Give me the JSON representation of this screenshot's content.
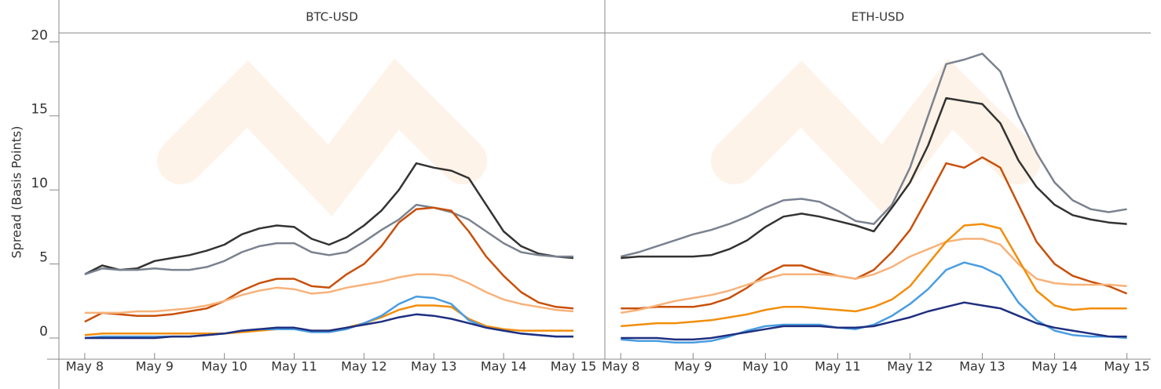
{
  "chart_data": [
    {
      "type": "line",
      "title": "BTC-USD",
      "ylabel": "Spread (Basis Points)",
      "x": [
        8,
        8.25,
        8.5,
        8.75,
        9,
        9.25,
        9.5,
        9.75,
        10,
        10.25,
        10.5,
        10.75,
        11,
        11.25,
        11.5,
        11.75,
        12,
        12.25,
        12.5,
        12.75,
        13,
        13.25,
        13.5,
        13.75,
        14,
        14.25,
        14.5,
        14.75,
        15
      ],
      "xlim": [
        7.63,
        15.45
      ],
      "xticks": [
        {
          "value": 8,
          "label": "May 8"
        },
        {
          "value": 9,
          "label": "May 9"
        },
        {
          "value": 10,
          "label": "May 10"
        },
        {
          "value": 11,
          "label": "May 11"
        },
        {
          "value": 12,
          "label": "May 12"
        },
        {
          "value": 13,
          "label": "May 13"
        },
        {
          "value": 14,
          "label": "May 14"
        },
        {
          "value": 15,
          "label": "May 15"
        }
      ],
      "ylim": [
        -0.9,
        20.6
      ],
      "yticks": [
        0,
        5,
        10,
        15,
        20
      ],
      "series": [
        {
          "color": "#333333",
          "values": [
            4.3,
            4.9,
            4.6,
            4.7,
            5.2,
            5.4,
            5.6,
            5.9,
            6.3,
            7.0,
            7.4,
            7.6,
            7.5,
            6.7,
            6.3,
            6.8,
            7.6,
            8.6,
            10.0,
            11.8,
            11.5,
            11.3,
            10.8,
            9.0,
            7.2,
            6.2,
            5.7,
            5.5,
            5.4
          ]
        },
        {
          "color": "#7a8290",
          "values": [
            4.3,
            4.7,
            4.6,
            4.6,
            4.7,
            4.6,
            4.6,
            4.8,
            5.2,
            5.8,
            6.2,
            6.4,
            6.4,
            5.8,
            5.6,
            5.8,
            6.5,
            7.3,
            8.0,
            9.0,
            8.8,
            8.5,
            8.0,
            7.2,
            6.4,
            5.8,
            5.6,
            5.5,
            5.5
          ]
        },
        {
          "color": "#c8500a",
          "values": [
            1.1,
            1.7,
            1.6,
            1.5,
            1.5,
            1.6,
            1.8,
            2.0,
            2.5,
            3.2,
            3.7,
            4.0,
            4.0,
            3.5,
            3.4,
            4.3,
            5.0,
            6.2,
            7.8,
            8.7,
            8.8,
            8.6,
            7.2,
            5.5,
            4.2,
            3.1,
            2.4,
            2.1,
            2.0
          ]
        },
        {
          "color": "#f7b27a",
          "values": [
            1.7,
            1.7,
            1.7,
            1.8,
            1.8,
            1.9,
            2.0,
            2.2,
            2.5,
            2.9,
            3.2,
            3.4,
            3.3,
            3.0,
            3.1,
            3.4,
            3.6,
            3.8,
            4.1,
            4.3,
            4.3,
            4.2,
            3.7,
            3.1,
            2.6,
            2.3,
            2.1,
            1.9,
            1.8
          ]
        },
        {
          "color": "#f28e0b",
          "values": [
            0.2,
            0.3,
            0.3,
            0.3,
            0.3,
            0.3,
            0.3,
            0.3,
            0.3,
            0.4,
            0.5,
            0.6,
            0.6,
            0.5,
            0.5,
            0.7,
            1.0,
            1.4,
            1.9,
            2.2,
            2.2,
            2.1,
            1.3,
            0.8,
            0.6,
            0.5,
            0.5,
            0.5,
            0.5
          ]
        },
        {
          "color": "#4a9de0",
          "values": [
            0.0,
            0.1,
            0.1,
            0.1,
            0.1,
            0.1,
            0.1,
            0.2,
            0.3,
            0.5,
            0.6,
            0.6,
            0.6,
            0.4,
            0.4,
            0.6,
            1.0,
            1.5,
            2.3,
            2.8,
            2.7,
            2.3,
            1.2,
            0.7,
            0.5,
            0.3,
            0.2,
            0.1,
            0.1
          ]
        },
        {
          "color": "#1f2f80",
          "values": [
            0.0,
            0.0,
            0.0,
            0.0,
            0.0,
            0.1,
            0.1,
            0.2,
            0.3,
            0.5,
            0.6,
            0.7,
            0.7,
            0.5,
            0.5,
            0.7,
            0.9,
            1.1,
            1.4,
            1.6,
            1.5,
            1.3,
            1.0,
            0.7,
            0.5,
            0.3,
            0.2,
            0.1,
            0.1
          ]
        }
      ]
    },
    {
      "type": "line",
      "title": "ETH-USD",
      "x": [
        8,
        8.25,
        8.5,
        8.75,
        9,
        9.25,
        9.5,
        9.75,
        10,
        10.25,
        10.5,
        10.75,
        11,
        11.25,
        11.5,
        11.75,
        12,
        12.25,
        12.5,
        12.75,
        13,
        13.25,
        13.5,
        13.75,
        14,
        14.25,
        14.5,
        14.75,
        15
      ],
      "xlim": [
        7.78,
        15.33
      ],
      "xticks": [
        {
          "value": 8,
          "label": "May 8"
        },
        {
          "value": 9,
          "label": "May 9"
        },
        {
          "value": 10,
          "label": "May 10"
        },
        {
          "value": 11,
          "label": "May 11"
        },
        {
          "value": 12,
          "label": "May 12"
        },
        {
          "value": 13,
          "label": "May 13"
        },
        {
          "value": 14,
          "label": "May 14"
        },
        {
          "value": 15,
          "label": "May 15"
        }
      ],
      "ylim": [
        -0.9,
        20.6
      ],
      "series": [
        {
          "color": "#7a8290",
          "values": [
            5.5,
            5.8,
            6.2,
            6.6,
            7.0,
            7.3,
            7.7,
            8.2,
            8.8,
            9.3,
            9.4,
            9.2,
            8.6,
            7.9,
            7.7,
            9.0,
            11.5,
            15.0,
            18.5,
            18.8,
            19.2,
            18.0,
            15.0,
            12.5,
            10.5,
            9.3,
            8.7,
            8.5,
            8.7
          ]
        },
        {
          "color": "#333333",
          "values": [
            5.4,
            5.5,
            5.5,
            5.5,
            5.5,
            5.6,
            6.0,
            6.6,
            7.5,
            8.2,
            8.4,
            8.2,
            7.9,
            7.6,
            7.2,
            8.8,
            10.5,
            13.0,
            16.2,
            16.0,
            15.8,
            14.5,
            12.0,
            10.2,
            9.0,
            8.3,
            8.0,
            7.8,
            7.7
          ]
        },
        {
          "color": "#c8500a",
          "values": [
            2.0,
            2.0,
            2.1,
            2.1,
            2.1,
            2.3,
            2.7,
            3.4,
            4.3,
            4.9,
            4.9,
            4.5,
            4.2,
            4.0,
            4.6,
            5.8,
            7.3,
            9.5,
            11.8,
            11.5,
            12.2,
            11.5,
            9.0,
            6.5,
            5.0,
            4.2,
            3.8,
            3.5,
            3.0
          ]
        },
        {
          "color": "#f7b27a",
          "values": [
            1.7,
            1.9,
            2.2,
            2.5,
            2.7,
            2.9,
            3.2,
            3.6,
            4.0,
            4.3,
            4.3,
            4.3,
            4.2,
            4.0,
            4.3,
            4.8,
            5.5,
            6.0,
            6.5,
            6.7,
            6.7,
            6.3,
            5.0,
            4.0,
            3.7,
            3.6,
            3.6,
            3.6,
            3.5
          ]
        },
        {
          "color": "#f28e0b",
          "values": [
            0.8,
            0.9,
            1.0,
            1.0,
            1.1,
            1.2,
            1.4,
            1.6,
            1.9,
            2.1,
            2.1,
            2.0,
            1.9,
            1.8,
            2.1,
            2.6,
            3.5,
            5.0,
            6.5,
            7.6,
            7.7,
            7.4,
            5.3,
            3.2,
            2.2,
            1.9,
            2.0,
            2.0,
            2.0
          ]
        },
        {
          "color": "#4a9de0",
          "values": [
            -0.1,
            -0.2,
            -0.2,
            -0.3,
            -0.3,
            -0.2,
            0.1,
            0.5,
            0.8,
            0.9,
            0.9,
            0.9,
            0.7,
            0.6,
            0.9,
            1.5,
            2.3,
            3.3,
            4.6,
            5.1,
            4.8,
            4.2,
            2.4,
            1.2,
            0.5,
            0.2,
            0.1,
            0.1,
            0.0
          ]
        },
        {
          "color": "#1f2f80",
          "values": [
            0.0,
            0.0,
            0.0,
            -0.1,
            -0.1,
            0.0,
            0.2,
            0.4,
            0.6,
            0.8,
            0.8,
            0.8,
            0.7,
            0.7,
            0.8,
            1.1,
            1.4,
            1.8,
            2.1,
            2.4,
            2.2,
            2.0,
            1.5,
            1.0,
            0.7,
            0.5,
            0.3,
            0.1,
            0.1
          ]
        }
      ]
    }
  ]
}
